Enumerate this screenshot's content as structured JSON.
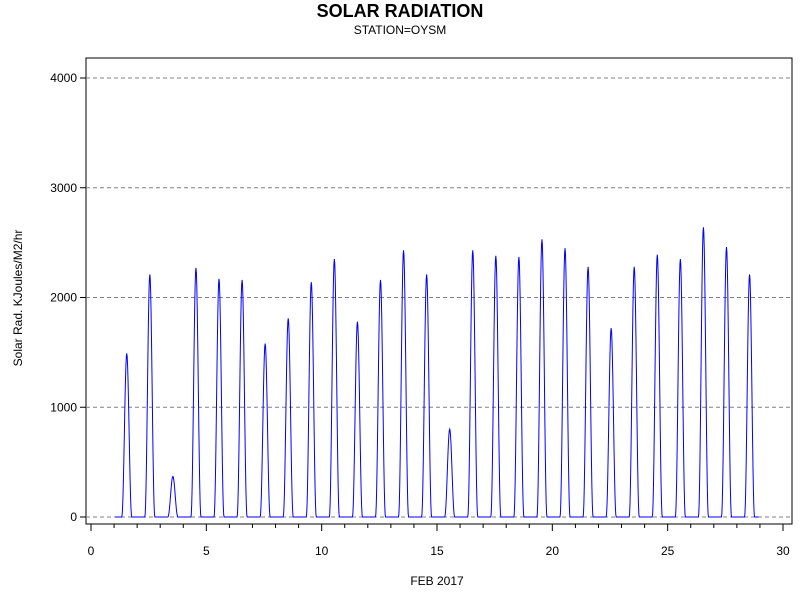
{
  "chart_data": {
    "type": "line",
    "title": "SOLAR RADIATION",
    "subtitle": "STATION=OYSM",
    "xlabel": "FEB 2017",
    "ylabel": "Solar Rad. KJoules/M2/hr",
    "xlim": [
      0,
      30
    ],
    "ylim": [
      0,
      4000
    ],
    "x_ticks": [
      0,
      5,
      10,
      15,
      20,
      25,
      30
    ],
    "y_ticks": [
      0,
      1000,
      2000,
      3000,
      4000
    ],
    "grid": "horizontal dashed",
    "line_color": "#0000ff",
    "series": [
      {
        "days": [
          {
            "day": 1,
            "peak": 1490
          },
          {
            "day": 2,
            "peak": 2210
          },
          {
            "day": 3,
            "peak": 370
          },
          {
            "day": 4,
            "peak": 2270
          },
          {
            "day": 5,
            "peak": 2170
          },
          {
            "day": 6,
            "peak": 2160
          },
          {
            "day": 7,
            "peak": 1580
          },
          {
            "day": 8,
            "peak": 1810
          },
          {
            "day": 9,
            "peak": 2140
          },
          {
            "day": 10,
            "peak": 2350
          },
          {
            "day": 11,
            "peak": 1780
          },
          {
            "day": 12,
            "peak": 2160
          },
          {
            "day": 13,
            "peak": 2430
          },
          {
            "day": 14,
            "peak": 2210
          },
          {
            "day": 15,
            "peak": 800
          },
          {
            "day": 16,
            "peak": 2430
          },
          {
            "day": 17,
            "peak": 2380
          },
          {
            "day": 18,
            "peak": 2370
          },
          {
            "day": 19,
            "peak": 2530
          },
          {
            "day": 20,
            "peak": 2450
          },
          {
            "day": 21,
            "peak": 2280
          },
          {
            "day": 22,
            "peak": 1720
          },
          {
            "day": 23,
            "peak": 2280
          },
          {
            "day": 24,
            "peak": 2390
          },
          {
            "day": 25,
            "peak": 2350
          },
          {
            "day": 26,
            "peak": 2640
          },
          {
            "day": 27,
            "peak": 2460
          },
          {
            "day": 28,
            "peak": 2210
          }
        ]
      }
    ]
  }
}
